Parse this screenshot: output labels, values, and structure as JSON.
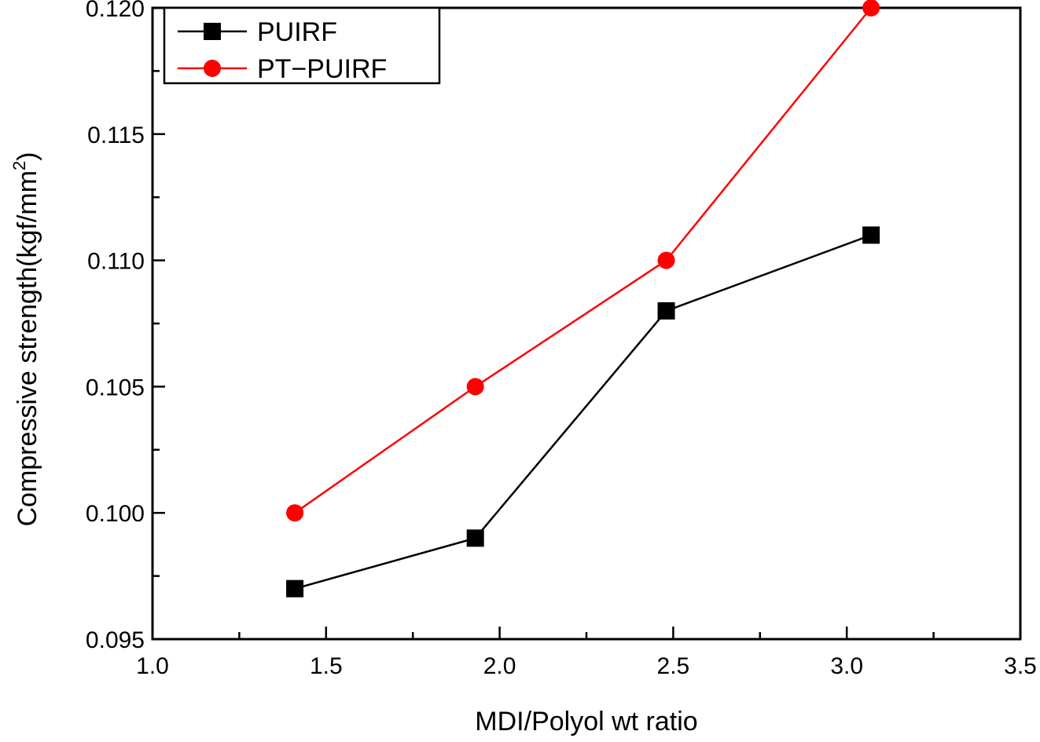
{
  "chart_data": {
    "type": "line",
    "title": "",
    "xlabel": "MDI/Polyol wt ratio",
    "ylabel": "Compressive strength(kgf/mm",
    "ylabel_superscript": "2",
    "ylabel_suffix": ")",
    "xlim": [
      1.0,
      3.5
    ],
    "ylim": [
      0.095,
      0.12
    ],
    "xticks": [
      "1.0",
      "1.5",
      "2.0",
      "2.5",
      "3.0",
      "3.5"
    ],
    "yticks": [
      "0.095",
      "0.100",
      "0.105",
      "0.110",
      "0.115",
      "0.120"
    ],
    "grid": false,
    "legend_position": "top-left",
    "series": [
      {
        "name": "PUIRF",
        "color": "#000000",
        "marker": "square",
        "x": [
          1.41,
          1.93,
          2.48,
          3.07
        ],
        "y": [
          0.097,
          0.099,
          0.108,
          0.111
        ]
      },
      {
        "name": "PT−PUIRF",
        "color": "#ff0000",
        "marker": "circle",
        "x": [
          1.41,
          1.93,
          2.48,
          3.07
        ],
        "y": [
          0.1,
          0.105,
          0.11,
          0.12
        ]
      }
    ]
  }
}
